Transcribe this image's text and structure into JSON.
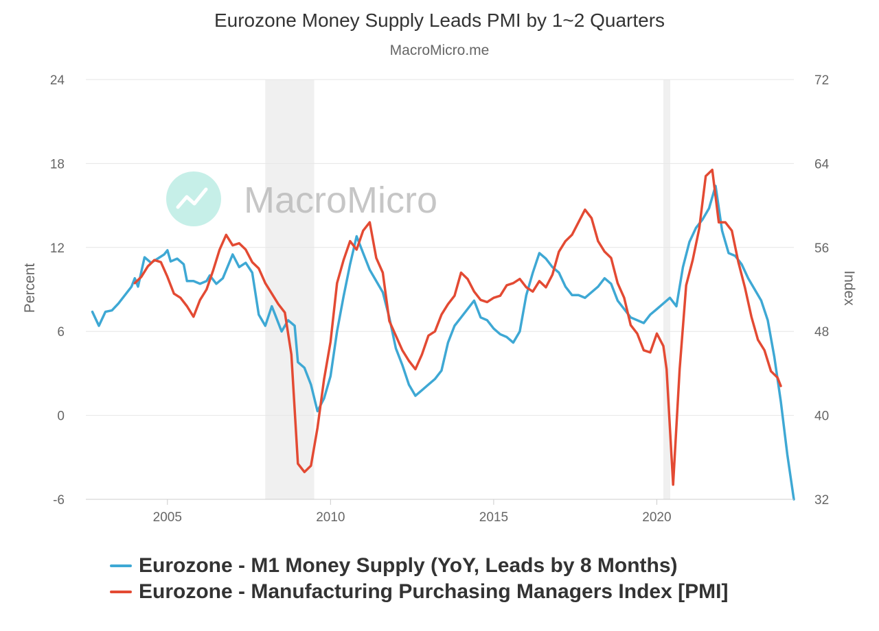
{
  "chart_data": {
    "type": "line",
    "title": "Eurozone Money Supply Leads PMI by 1~2 Quarters",
    "subtitle": "MacroMicro.me",
    "watermark": "MacroMicro",
    "x_ticks": [
      "2005",
      "2010",
      "2015",
      "2020"
    ],
    "y_left": {
      "label": "Percent",
      "min": -6,
      "max": 24,
      "ticks": [
        "-6",
        "0",
        "6",
        "12",
        "18",
        "24"
      ]
    },
    "y_right": {
      "label": "Index",
      "min": 32,
      "max": 72,
      "ticks": [
        "32",
        "40",
        "48",
        "56",
        "64",
        "72"
      ]
    },
    "xlim": [
      2002.5,
      2024.2
    ],
    "shaded_periods": [
      [
        2008.0,
        2009.5
      ],
      [
        2020.2,
        2020.4
      ]
    ],
    "grid": true,
    "series": [
      {
        "name": "Eurozone - M1 Money Supply (YoY, Leads by 8 Months)",
        "axis": "left",
        "color": "#3ea8d4",
        "points": [
          [
            2002.7,
            7.4
          ],
          [
            2002.9,
            6.4
          ],
          [
            2003.1,
            7.4
          ],
          [
            2003.3,
            7.5
          ],
          [
            2003.5,
            8.0
          ],
          [
            2003.7,
            8.6
          ],
          [
            2003.9,
            9.2
          ],
          [
            2004.0,
            9.8
          ],
          [
            2004.1,
            9.2
          ],
          [
            2004.3,
            11.3
          ],
          [
            2004.5,
            10.9
          ],
          [
            2004.7,
            11.2
          ],
          [
            2004.9,
            11.5
          ],
          [
            2005.0,
            11.8
          ],
          [
            2005.1,
            11.0
          ],
          [
            2005.3,
            11.2
          ],
          [
            2005.5,
            10.8
          ],
          [
            2005.6,
            9.6
          ],
          [
            2005.8,
            9.6
          ],
          [
            2006.0,
            9.4
          ],
          [
            2006.2,
            9.6
          ],
          [
            2006.3,
            10.0
          ],
          [
            2006.5,
            9.4
          ],
          [
            2006.7,
            9.8
          ],
          [
            2007.0,
            11.5
          ],
          [
            2007.2,
            10.6
          ],
          [
            2007.4,
            10.9
          ],
          [
            2007.6,
            10.2
          ],
          [
            2007.8,
            7.2
          ],
          [
            2008.0,
            6.4
          ],
          [
            2008.2,
            7.8
          ],
          [
            2008.3,
            7.2
          ],
          [
            2008.5,
            6.0
          ],
          [
            2008.7,
            6.8
          ],
          [
            2008.9,
            6.4
          ],
          [
            2009.0,
            3.8
          ],
          [
            2009.2,
            3.4
          ],
          [
            2009.4,
            2.2
          ],
          [
            2009.6,
            0.3
          ],
          [
            2009.8,
            1.2
          ],
          [
            2010.0,
            2.8
          ],
          [
            2010.2,
            6.0
          ],
          [
            2010.4,
            8.5
          ],
          [
            2010.6,
            10.8
          ],
          [
            2010.8,
            12.8
          ],
          [
            2011.0,
            11.6
          ],
          [
            2011.2,
            10.4
          ],
          [
            2011.4,
            9.6
          ],
          [
            2011.6,
            8.8
          ],
          [
            2011.8,
            7.0
          ],
          [
            2012.0,
            4.8
          ],
          [
            2012.2,
            3.6
          ],
          [
            2012.4,
            2.2
          ],
          [
            2012.6,
            1.4
          ],
          [
            2012.8,
            1.8
          ],
          [
            2013.0,
            2.2
          ],
          [
            2013.2,
            2.6
          ],
          [
            2013.4,
            3.2
          ],
          [
            2013.6,
            5.2
          ],
          [
            2013.8,
            6.4
          ],
          [
            2014.0,
            7.0
          ],
          [
            2014.2,
            7.6
          ],
          [
            2014.4,
            8.2
          ],
          [
            2014.6,
            7.0
          ],
          [
            2014.8,
            6.8
          ],
          [
            2015.0,
            6.2
          ],
          [
            2015.2,
            5.8
          ],
          [
            2015.4,
            5.6
          ],
          [
            2015.6,
            5.2
          ],
          [
            2015.8,
            6.0
          ],
          [
            2016.0,
            8.6
          ],
          [
            2016.2,
            10.2
          ],
          [
            2016.4,
            11.6
          ],
          [
            2016.6,
            11.2
          ],
          [
            2016.8,
            10.6
          ],
          [
            2017.0,
            10.2
          ],
          [
            2017.2,
            9.2
          ],
          [
            2017.4,
            8.6
          ],
          [
            2017.6,
            8.6
          ],
          [
            2017.8,
            8.4
          ],
          [
            2018.0,
            8.8
          ],
          [
            2018.2,
            9.2
          ],
          [
            2018.4,
            9.8
          ],
          [
            2018.6,
            9.4
          ],
          [
            2018.8,
            8.2
          ],
          [
            2019.0,
            7.6
          ],
          [
            2019.2,
            7.0
          ],
          [
            2019.4,
            6.8
          ],
          [
            2019.6,
            6.6
          ],
          [
            2019.8,
            7.2
          ],
          [
            2020.0,
            7.6
          ],
          [
            2020.2,
            8.0
          ],
          [
            2020.4,
            8.4
          ],
          [
            2020.6,
            7.8
          ],
          [
            2020.8,
            10.6
          ],
          [
            2021.0,
            12.4
          ],
          [
            2021.2,
            13.4
          ],
          [
            2021.4,
            14.0
          ],
          [
            2021.6,
            14.8
          ],
          [
            2021.8,
            16.4
          ],
          [
            2022.0,
            13.2
          ],
          [
            2022.2,
            11.6
          ],
          [
            2022.4,
            11.4
          ],
          [
            2022.6,
            10.8
          ],
          [
            2022.8,
            9.8
          ],
          [
            2023.0,
            9.0
          ],
          [
            2023.2,
            8.2
          ],
          [
            2023.4,
            6.8
          ],
          [
            2023.6,
            4.2
          ],
          [
            2023.8,
            1.0
          ],
          [
            2024.0,
            -2.8
          ],
          [
            2024.2,
            -6.0
          ]
        ]
      },
      {
        "name": "Eurozone - Manufacturing Purchasing Managers Index [PMI]",
        "axis": "right",
        "color": "#e34a33",
        "points": [
          [
            2004.0,
            52.6
          ],
          [
            2004.2,
            53.2
          ],
          [
            2004.4,
            54.2
          ],
          [
            2004.6,
            54.8
          ],
          [
            2004.8,
            54.6
          ],
          [
            2005.0,
            53.2
          ],
          [
            2005.2,
            51.6
          ],
          [
            2005.4,
            51.2
          ],
          [
            2005.6,
            50.4
          ],
          [
            2005.8,
            49.4
          ],
          [
            2006.0,
            51.0
          ],
          [
            2006.2,
            52.0
          ],
          [
            2006.4,
            53.8
          ],
          [
            2006.6,
            55.8
          ],
          [
            2006.8,
            57.2
          ],
          [
            2007.0,
            56.2
          ],
          [
            2007.2,
            56.4
          ],
          [
            2007.4,
            55.8
          ],
          [
            2007.6,
            54.6
          ],
          [
            2007.8,
            54.0
          ],
          [
            2008.0,
            52.6
          ],
          [
            2008.2,
            51.6
          ],
          [
            2008.4,
            50.6
          ],
          [
            2008.6,
            49.8
          ],
          [
            2008.8,
            45.8
          ],
          [
            2009.0,
            35.4
          ],
          [
            2009.2,
            34.6
          ],
          [
            2009.4,
            35.2
          ],
          [
            2009.6,
            38.8
          ],
          [
            2009.8,
            43.4
          ],
          [
            2010.0,
            47.0
          ],
          [
            2010.2,
            52.6
          ],
          [
            2010.4,
            54.8
          ],
          [
            2010.6,
            56.6
          ],
          [
            2010.8,
            55.8
          ],
          [
            2011.0,
            57.6
          ],
          [
            2011.2,
            58.4
          ],
          [
            2011.4,
            55.0
          ],
          [
            2011.6,
            53.6
          ],
          [
            2011.8,
            49.0
          ],
          [
            2012.0,
            47.6
          ],
          [
            2012.2,
            46.2
          ],
          [
            2012.4,
            45.2
          ],
          [
            2012.6,
            44.4
          ],
          [
            2012.8,
            45.8
          ],
          [
            2013.0,
            47.6
          ],
          [
            2013.2,
            48.0
          ],
          [
            2013.4,
            49.6
          ],
          [
            2013.6,
            50.6
          ],
          [
            2013.8,
            51.4
          ],
          [
            2014.0,
            53.6
          ],
          [
            2014.2,
            53.0
          ],
          [
            2014.4,
            51.8
          ],
          [
            2014.6,
            51.0
          ],
          [
            2014.8,
            50.8
          ],
          [
            2015.0,
            51.2
          ],
          [
            2015.2,
            51.4
          ],
          [
            2015.4,
            52.4
          ],
          [
            2015.6,
            52.6
          ],
          [
            2015.8,
            53.0
          ],
          [
            2016.0,
            52.2
          ],
          [
            2016.2,
            51.8
          ],
          [
            2016.4,
            52.8
          ],
          [
            2016.6,
            52.2
          ],
          [
            2016.8,
            53.4
          ],
          [
            2017.0,
            55.6
          ],
          [
            2017.2,
            56.6
          ],
          [
            2017.4,
            57.2
          ],
          [
            2017.6,
            58.4
          ],
          [
            2017.8,
            59.6
          ],
          [
            2018.0,
            58.8
          ],
          [
            2018.2,
            56.6
          ],
          [
            2018.4,
            55.6
          ],
          [
            2018.6,
            55.0
          ],
          [
            2018.8,
            52.6
          ],
          [
            2019.0,
            51.2
          ],
          [
            2019.2,
            48.6
          ],
          [
            2019.4,
            47.8
          ],
          [
            2019.6,
            46.2
          ],
          [
            2019.8,
            46.0
          ],
          [
            2020.0,
            47.8
          ],
          [
            2020.2,
            46.6
          ],
          [
            2020.3,
            44.4
          ],
          [
            2020.5,
            33.4
          ],
          [
            2020.7,
            44.4
          ],
          [
            2020.9,
            52.4
          ],
          [
            2021.1,
            54.8
          ],
          [
            2021.3,
            57.8
          ],
          [
            2021.5,
            62.8
          ],
          [
            2021.7,
            63.4
          ],
          [
            2021.9,
            58.4
          ],
          [
            2022.1,
            58.4
          ],
          [
            2022.3,
            57.6
          ],
          [
            2022.5,
            54.6
          ],
          [
            2022.7,
            52.2
          ],
          [
            2022.9,
            49.4
          ],
          [
            2023.1,
            47.2
          ],
          [
            2023.3,
            46.2
          ],
          [
            2023.5,
            44.2
          ],
          [
            2023.7,
            43.6
          ],
          [
            2023.8,
            42.8
          ]
        ]
      }
    ],
    "legend_position": "bottom"
  }
}
